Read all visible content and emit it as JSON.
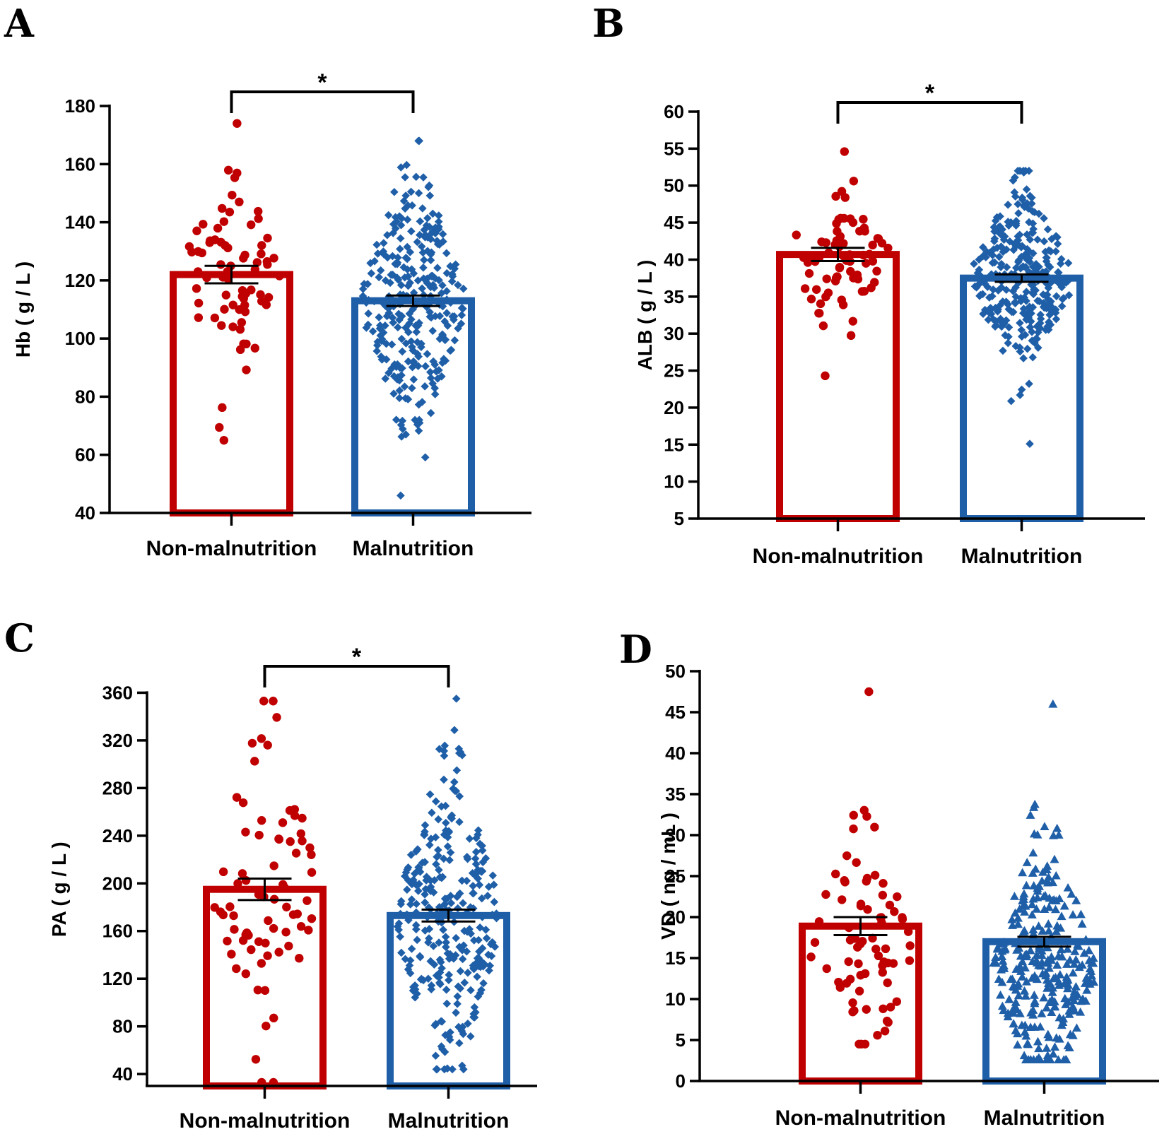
{
  "colors": {
    "non_malnutrition": "#c00000",
    "malnutrition": "#1f5fa8",
    "axis": "#000000"
  },
  "chart_data": [
    {
      "panel": "A",
      "type": "bar",
      "ylabel": "Hb ( g / L )",
      "ylim": [
        40,
        180
      ],
      "yticks": [
        40,
        60,
        80,
        100,
        120,
        140,
        160,
        180
      ],
      "categories": [
        "Non-malnutrition",
        "Malnutrition"
      ],
      "values": [
        122,
        113
      ],
      "sem": [
        3,
        1.8
      ],
      "significance": "*",
      "points": [
        {
          "marker": "circle",
          "n": 75,
          "min": 65,
          "max": 174,
          "center": 122,
          "spread": 16
        },
        {
          "marker": "diamond",
          "n": 300,
          "min": 46,
          "max": 168,
          "center": 113,
          "spread": 20
        }
      ]
    },
    {
      "panel": "B",
      "type": "bar",
      "ylabel": "ALB ( g / L )",
      "ylim": [
        5,
        60
      ],
      "yticks": [
        5,
        10,
        15,
        20,
        25,
        30,
        35,
        40,
        45,
        50,
        55,
        60
      ],
      "categories": [
        "Non-malnutrition",
        "Malnutrition"
      ],
      "values": [
        40.7,
        37.5
      ],
      "sem": [
        0.9,
        0.5
      ],
      "significance": "*",
      "points": [
        {
          "marker": "circle",
          "n": 75,
          "min": 24.3,
          "max": 54.6,
          "center": 40.7,
          "spread": 4.5
        },
        {
          "marker": "diamond",
          "n": 300,
          "min": 15.1,
          "max": 52,
          "center": 37.5,
          "spread": 5.5
        }
      ]
    },
    {
      "panel": "C",
      "type": "bar",
      "ylabel": "PA ( g / L )",
      "ylim": [
        30,
        365
      ],
      "yticks": [
        40,
        80,
        120,
        160,
        200,
        240,
        280,
        320,
        360
      ],
      "categories": [
        "Non-malnutrition",
        "Malnutrition"
      ],
      "values": [
        195,
        173
      ],
      "sem": [
        9,
        5
      ],
      "significance": "*",
      "points": [
        {
          "marker": "circle",
          "n": 75,
          "min": 33,
          "max": 353,
          "center": 195,
          "spread": 65
        },
        {
          "marker": "diamond",
          "n": 300,
          "min": 44,
          "max": 355,
          "center": 170,
          "spread": 60
        }
      ]
    },
    {
      "panel": "D",
      "type": "bar",
      "ylabel": "VD ( ng / mL )",
      "ylim": [
        0,
        50
      ],
      "yticks": [
        0,
        5,
        10,
        15,
        20,
        25,
        30,
        35,
        40,
        45,
        50
      ],
      "categories": [
        "Non-malnutrition",
        "Malnutrition"
      ],
      "values": [
        18.9,
        17
      ],
      "sem": [
        1.1,
        0.6
      ],
      "significance": "",
      "points": [
        {
          "marker": "circle",
          "n": 75,
          "min": 4.5,
          "max": 47.5,
          "center": 16,
          "spread": 7
        },
        {
          "marker": "triangle",
          "n": 300,
          "min": 2.6,
          "max": 46,
          "center": 14,
          "spread": 7
        }
      ]
    }
  ]
}
